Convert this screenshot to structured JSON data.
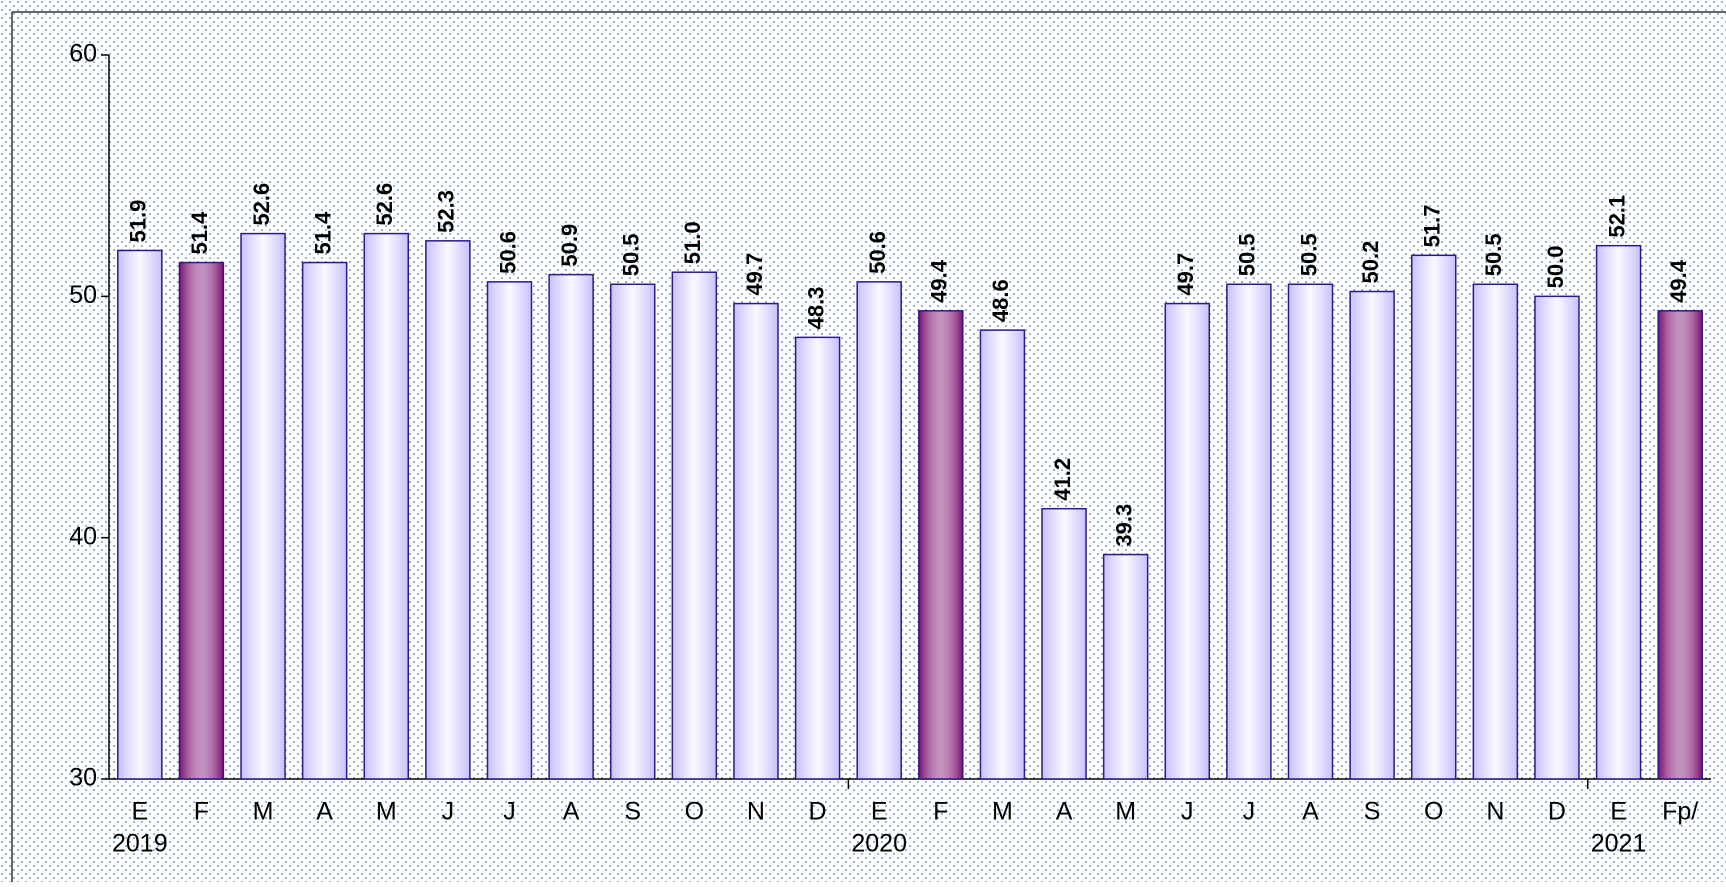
{
  "chart_data": {
    "type": "bar",
    "categories": [
      "E",
      "F",
      "M",
      "A",
      "M",
      "J",
      "J",
      "A",
      "S",
      "O",
      "N",
      "D",
      "E",
      "F",
      "M",
      "A",
      "M",
      "J",
      "J",
      "A",
      "S",
      "O",
      "N",
      "D",
      "E",
      "Fp/"
    ],
    "years": [
      "2019",
      null,
      null,
      null,
      null,
      null,
      null,
      null,
      null,
      null,
      null,
      null,
      "2020",
      null,
      null,
      null,
      null,
      null,
      null,
      null,
      null,
      null,
      null,
      null,
      "2021",
      null
    ],
    "values": [
      51.9,
      51.4,
      52.6,
      51.4,
      52.6,
      52.3,
      50.6,
      50.9,
      50.5,
      51.0,
      49.7,
      48.3,
      50.6,
      49.4,
      48.6,
      41.2,
      39.3,
      49.7,
      50.5,
      50.5,
      50.2,
      51.7,
      50.5,
      50.0,
      52.1,
      49.4
    ],
    "value_labels": [
      "51.9",
      "51.4",
      "52.6",
      "51.4",
      "52.6",
      "52.3",
      "50.6",
      "50.9",
      "50.5",
      "51.0",
      "49.7",
      "48.3",
      "50.6",
      "49.4",
      "48.6",
      "41.2",
      "39.3",
      "49.7",
      "50.5",
      "50.5",
      "50.2",
      "51.7",
      "50.5",
      "50.0",
      "52.1",
      "49.4"
    ],
    "colors": [
      "#c8c0ff",
      "#7a1070",
      "#c8c0ff",
      "#c8c0ff",
      "#c8c0ff",
      "#c8c0ff",
      "#c8c0ff",
      "#c8c0ff",
      "#c8c0ff",
      "#c8c0ff",
      "#c8c0ff",
      "#c8c0ff",
      "#c8c0ff",
      "#7a1070",
      "#c8c0ff",
      "#c8c0ff",
      "#c8c0ff",
      "#c8c0ff",
      "#c8c0ff",
      "#c8c0ff",
      "#c8c0ff",
      "#c8c0ff",
      "#c8c0ff",
      "#c8c0ff",
      "#c8c0ff",
      "#7a1070"
    ],
    "ylim": [
      30,
      60
    ],
    "yticks": [
      30,
      40,
      50,
      60
    ]
  }
}
